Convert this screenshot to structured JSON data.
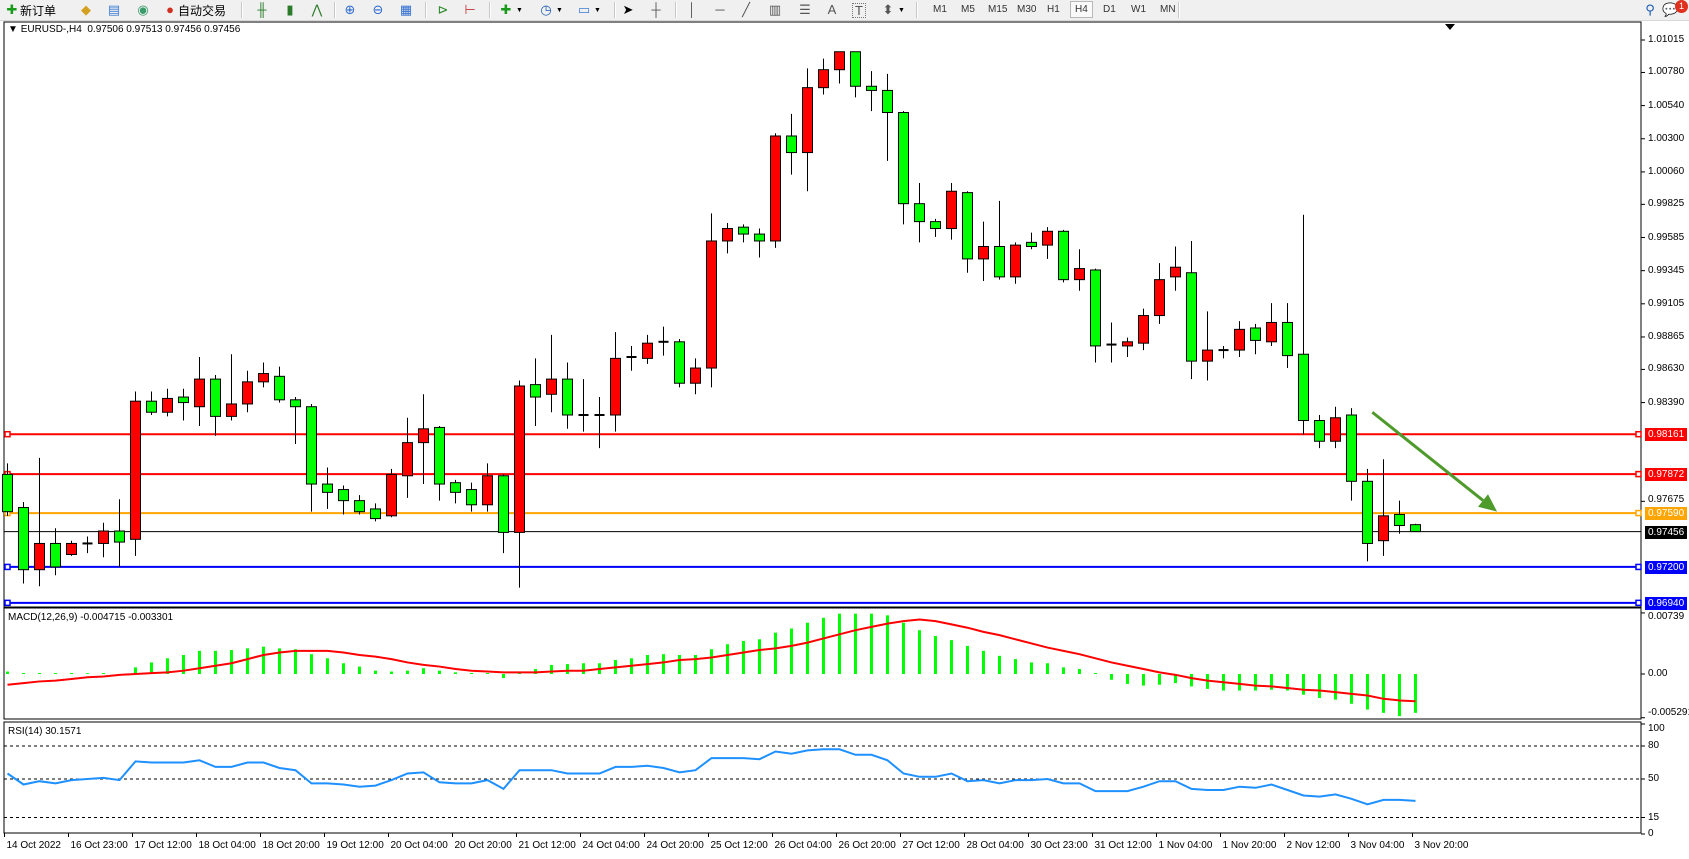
{
  "toolbar": {
    "new_order_label": "新订单",
    "autotrading_label": "自动交易",
    "timeframes": [
      "M1",
      "M5",
      "M15",
      "M30",
      "H1",
      "H4",
      "D1",
      "W1",
      "MN"
    ],
    "selected_timeframe": "H4",
    "text_tool": "A",
    "label_tool": "T",
    "notification_count": "1",
    "icons": [
      "new-order-icon",
      "gold-bars-icon",
      "market-watch-icon",
      "signals-icon",
      "autotrading-icon",
      "bar-chart-icon",
      "candlestick-icon",
      "line-chart-icon",
      "zoom-in-icon",
      "zoom-out-icon",
      "tile-windows-icon",
      "chart-shift-icon",
      "autoscroll-icon",
      "indicators-icon",
      "periods-icon",
      "templates-icon",
      "cursor-icon",
      "crosshair-icon",
      "vertical-line-icon",
      "horizontal-line-icon",
      "trendline-icon",
      "fibonacci-icon",
      "fibonacci-fan-icon",
      "text-icon",
      "label-icon",
      "arrows-icon",
      "search-icon",
      "notification-icon"
    ]
  },
  "chart_header": {
    "symbol": "EURUSD-,H4",
    "ohlc": "0.97506 0.97513 0.97456 0.97456"
  },
  "macd_header": "MACD(12,26,9) -0.004715 -0.003301",
  "rsi_header": "RSI(14) 30.1571",
  "colors": {
    "up_candle": "#ff0000",
    "down_candle": "#00ff00",
    "macd_hist": "#00ff00",
    "macd_signal": "#ff0000",
    "rsi": "#1e90ff",
    "arrow": "#4e9a2a"
  },
  "chart_data": [
    {
      "type": "candlestick",
      "symbol": "EURUSD-",
      "timeframe": "H4",
      "ylim": [
        0.9694,
        1.01015
      ],
      "y_ticks": [
        "1.01015",
        "1.00780",
        "1.00540",
        "1.00300",
        "1.00060",
        "0.99825",
        "0.99585",
        "0.99345",
        "0.99105",
        "0.98865",
        "0.98630",
        "0.98390",
        "0.97675"
      ],
      "x_tick_labels": [
        "14 Oct 2022",
        "16 Oct 23:00",
        "17 Oct 12:00",
        "18 Oct 04:00",
        "18 Oct 20:00",
        "19 Oct 12:00",
        "20 Oct 04:00",
        "20 Oct 20:00",
        "21 Oct 12:00",
        "24 Oct 04:00",
        "24 Oct 20:00",
        "25 Oct 12:00",
        "26 Oct 04:00",
        "26 Oct 20:00",
        "27 Oct 12:00",
        "28 Oct 04:00",
        "30 Oct 23:00",
        "31 Oct 12:00",
        "1 Nov 04:00",
        "1 Nov 20:00",
        "2 Nov 12:00",
        "3 Nov 04:00",
        "3 Nov 20:00"
      ],
      "x_tick_every_bars": 4,
      "ohlc": [
        [
          0.9787,
          0.9795,
          0.9757,
          0.976
        ],
        [
          0.9763,
          0.9767,
          0.9708,
          0.9718
        ],
        [
          0.9718,
          0.9799,
          0.9706,
          0.9737
        ],
        [
          0.9737,
          0.9748,
          0.9714,
          0.972
        ],
        [
          0.9729,
          0.9739,
          0.9728,
          0.9737
        ],
        [
          0.9737,
          0.9742,
          0.973,
          0.9737
        ],
        [
          0.9737,
          0.9752,
          0.9727,
          0.9746
        ],
        [
          0.9746,
          0.9769,
          0.972,
          0.9738
        ],
        [
          0.974,
          0.9847,
          0.9728,
          0.984
        ],
        [
          0.984,
          0.9847,
          0.983,
          0.9832
        ],
        [
          0.9832,
          0.9849,
          0.9829,
          0.9842
        ],
        [
          0.9843,
          0.9849,
          0.9826,
          0.9839
        ],
        [
          0.9836,
          0.9872,
          0.9822,
          0.9856
        ],
        [
          0.9856,
          0.9859,
          0.9815,
          0.9829
        ],
        [
          0.9829,
          0.9874,
          0.9826,
          0.9838
        ],
        [
          0.9838,
          0.9862,
          0.9832,
          0.9854
        ],
        [
          0.9854,
          0.9868,
          0.985,
          0.986
        ],
        [
          0.9858,
          0.9865,
          0.9839,
          0.9841
        ],
        [
          0.9841,
          0.9843,
          0.9809,
          0.9836
        ],
        [
          0.9836,
          0.9838,
          0.976,
          0.978
        ],
        [
          0.978,
          0.9792,
          0.9762,
          0.9774
        ],
        [
          0.9776,
          0.9779,
          0.9758,
          0.9768
        ],
        [
          0.9768,
          0.9772,
          0.9758,
          0.976
        ],
        [
          0.9762,
          0.9766,
          0.9753,
          0.9755
        ],
        [
          0.9757,
          0.9791,
          0.9756,
          0.9787
        ],
        [
          0.9786,
          0.9828,
          0.977,
          0.981
        ],
        [
          0.981,
          0.9845,
          0.978,
          0.982
        ],
        [
          0.9821,
          0.9822,
          0.9768,
          0.978
        ],
        [
          0.9781,
          0.9783,
          0.9766,
          0.9774
        ],
        [
          0.9776,
          0.9781,
          0.976,
          0.9765
        ],
        [
          0.9765,
          0.9795,
          0.976,
          0.9786
        ],
        [
          0.9786,
          0.9787,
          0.973,
          0.9745
        ],
        [
          0.9745,
          0.9855,
          0.9705,
          0.9851
        ],
        [
          0.9852,
          0.9871,
          0.9822,
          0.9843
        ],
        [
          0.9845,
          0.9888,
          0.9832,
          0.9856
        ],
        [
          0.9856,
          0.9868,
          0.982,
          0.983
        ],
        [
          0.983,
          0.9856,
          0.9818,
          0.983
        ],
        [
          0.983,
          0.9843,
          0.9806,
          0.983
        ],
        [
          0.983,
          0.989,
          0.9818,
          0.9871
        ],
        [
          0.9872,
          0.988,
          0.9862,
          0.9872
        ],
        [
          0.9871,
          0.9888,
          0.9867,
          0.9882
        ],
        [
          0.9883,
          0.9894,
          0.9873,
          0.9883
        ],
        [
          0.9883,
          0.9885,
          0.985,
          0.9853
        ],
        [
          0.9853,
          0.9871,
          0.9845,
          0.9864
        ],
        [
          0.9864,
          0.9976,
          0.985,
          0.9956
        ],
        [
          0.9956,
          0.9969,
          0.9947,
          0.9965
        ],
        [
          0.9966,
          0.9968,
          0.9955,
          0.9961
        ],
        [
          0.9961,
          0.9965,
          0.9944,
          0.9956
        ],
        [
          0.9956,
          1.0034,
          0.9951,
          1.0032
        ],
        [
          1.0032,
          1.0048,
          1.0004,
          1.002
        ],
        [
          1.002,
          1.0081,
          0.9992,
          1.0067
        ],
        [
          1.0067,
          1.0088,
          1.0062,
          1.008
        ],
        [
          1.008,
          1.0093,
          1.007,
          1.0093
        ],
        [
          1.0093,
          1.0093,
          1.006,
          1.0068
        ],
        [
          1.0068,
          1.0079,
          1.005,
          1.0065
        ],
        [
          1.0065,
          1.0077,
          1.0014,
          1.0049
        ],
        [
          1.0049,
          1.005,
          0.9968,
          0.9983
        ],
        [
          0.9983,
          0.9998,
          0.9955,
          0.997
        ],
        [
          0.997,
          0.9972,
          0.9959,
          0.9965
        ],
        [
          0.9965,
          0.9998,
          0.9957,
          0.9992
        ],
        [
          0.9991,
          0.9992,
          0.9933,
          0.9943
        ],
        [
          0.9943,
          0.997,
          0.9927,
          0.9952
        ],
        [
          0.9952,
          0.9985,
          0.9928,
          0.993
        ],
        [
          0.993,
          0.9955,
          0.9925,
          0.9953
        ],
        [
          0.9955,
          0.9962,
          0.995,
          0.9952
        ],
        [
          0.9953,
          0.9966,
          0.9943,
          0.9963
        ],
        [
          0.9963,
          0.9964,
          0.9926,
          0.9928
        ],
        [
          0.9928,
          0.995,
          0.992,
          0.9936
        ],
        [
          0.9935,
          0.9936,
          0.9868,
          0.988
        ],
        [
          0.9881,
          0.9897,
          0.9868,
          0.9881
        ],
        [
          0.988,
          0.9886,
          0.9872,
          0.9883
        ],
        [
          0.9882,
          0.9907,
          0.9877,
          0.9902
        ],
        [
          0.9902,
          0.994,
          0.9896,
          0.9928
        ],
        [
          0.993,
          0.9952,
          0.992,
          0.9937
        ],
        [
          0.9933,
          0.9956,
          0.9856,
          0.9869
        ],
        [
          0.9869,
          0.9905,
          0.9855,
          0.9877
        ],
        [
          0.9877,
          0.988,
          0.9871,
          0.9877
        ],
        [
          0.9877,
          0.9898,
          0.9872,
          0.9892
        ],
        [
          0.9893,
          0.9896,
          0.9874,
          0.9884
        ],
        [
          0.9883,
          0.9911,
          0.988,
          0.9897
        ],
        [
          0.9897,
          0.9911,
          0.9864,
          0.9873
        ],
        [
          0.9874,
          0.9975,
          0.9816,
          0.9826
        ],
        [
          0.9826,
          0.983,
          0.9806,
          0.9811
        ],
        [
          0.9811,
          0.9836,
          0.9806,
          0.9828
        ],
        [
          0.983,
          0.9835,
          0.9768,
          0.9782
        ],
        [
          0.9782,
          0.9791,
          0.9724,
          0.9737
        ],
        [
          0.9739,
          0.9798,
          0.9728,
          0.9757
        ],
        [
          0.9758,
          0.9768,
          0.9744,
          0.975
        ],
        [
          0.97506,
          0.97513,
          0.97456,
          0.97456
        ]
      ],
      "horizontal_levels": [
        {
          "price": "0.98161",
          "color": "#ff0000"
        },
        {
          "price": "0.97872",
          "color": "#ff0000"
        },
        {
          "price": "0.97590",
          "color": "#ffa500"
        },
        {
          "price": "0.97456",
          "color": "#000000",
          "kind": "bid"
        },
        {
          "price": "0.97200",
          "color": "#0000ff"
        },
        {
          "price": "0.96940",
          "color": "#0000ff"
        }
      ],
      "arrow": {
        "from": {
          "bar": 86.3,
          "price": 0.9832
        },
        "to": {
          "bar": 94.1,
          "price": 0.976
        },
        "color": "#4e9a2a"
      }
    },
    {
      "type": "bar+line",
      "indicator": "MACD(12,26,9)",
      "ylim": [
        -0.005291,
        0.00739
      ],
      "y_ticks": [
        "0.00739",
        "0.00",
        "-0.005291"
      ],
      "histogram": [
        0.0003,
        0,
        0,
        0,
        0,
        0.0001,
        0,
        -0.0002,
        0.0008,
        0.0014,
        0.0019,
        0.0023,
        0.0028,
        0.0028,
        0.0029,
        0.0031,
        0.0033,
        0.0031,
        0.003,
        0.0024,
        0.0019,
        0.0013,
        0.0009,
        0.0004,
        0.0003,
        0.0004,
        0.0007,
        0.0004,
        0.0002,
        0,
        0,
        -0.0005,
        0.0002,
        0.0006,
        0.0011,
        0.0012,
        0.0013,
        0.0013,
        0.0017,
        0.0019,
        0.0023,
        0.0024,
        0.0023,
        0.0023,
        0.003,
        0.0036,
        0.004,
        0.0042,
        0.005,
        0.0055,
        0.0062,
        0.0068,
        0.0073,
        0.0073,
        0.0073,
        0.0071,
        0.0062,
        0.0053,
        0.0046,
        0.0041,
        0.0034,
        0.0028,
        0.0022,
        0.0018,
        0.0014,
        0.0013,
        0.0008,
        0.0006,
        0,
        -0.0007,
        -0.0012,
        -0.0014,
        -0.0013,
        -0.0011,
        -0.0015,
        -0.0018,
        -0.002,
        -0.002,
        -0.002,
        -0.0019,
        -0.002,
        -0.0025,
        -0.0029,
        -0.0031,
        -0.0036,
        -0.0043,
        -0.0047,
        -0.0051,
        -0.0047
      ],
      "signal": [
        -0.0013,
        -0.0011,
        -0.0009,
        -0.0008,
        -0.0006,
        -0.0004,
        -0.0003,
        -0.0001,
        0,
        0.0001,
        0.0002,
        0.0004,
        0.0007,
        0.001,
        0.0013,
        0.0018,
        0.0023,
        0.0026,
        0.0028,
        0.0028,
        0.0028,
        0.0026,
        0.0023,
        0.0021,
        0.0018,
        0.0014,
        0.0011,
        0.0009,
        0.0006,
        0.0004,
        0.0003,
        0.0002,
        0.0002,
        0.0002,
        0.0003,
        0.0004,
        0.0004,
        0.0006,
        0.0008,
        0.001,
        0.0012,
        0.0014,
        0.0017,
        0.0018,
        0.002,
        0.0023,
        0.0026,
        0.0029,
        0.0031,
        0.0034,
        0.0038,
        0.0043,
        0.0048,
        0.0053,
        0.0057,
        0.0061,
        0.0064,
        0.0066,
        0.0064,
        0.006,
        0.0056,
        0.0051,
        0.0047,
        0.0042,
        0.0037,
        0.0032,
        0.0028,
        0.0024,
        0.0019,
        0.0014,
        0.001,
        0.0006,
        0.0002,
        -0.0001,
        -0.0005,
        -0.0008,
        -0.001,
        -0.0012,
        -0.0014,
        -0.0015,
        -0.0017,
        -0.0019,
        -0.002,
        -0.0022,
        -0.0024,
        -0.0026,
        -0.003,
        -0.0032,
        -0.0033
      ]
    },
    {
      "type": "line",
      "indicator": "RSI(14)",
      "ylim": [
        0,
        100
      ],
      "y_ticks": [
        "100",
        "80",
        "50",
        "15",
        "0"
      ],
      "levels": [
        80,
        50,
        15
      ],
      "values": [
        55,
        45,
        48,
        46,
        49,
        50,
        51,
        49,
        66,
        65,
        65,
        65,
        67,
        61,
        61,
        65,
        65,
        60,
        58,
        46,
        46,
        45,
        43,
        44,
        49,
        55,
        56,
        47,
        46,
        46,
        49,
        41,
        58,
        58,
        58,
        55,
        55,
        55,
        61,
        61,
        62,
        60,
        56,
        58,
        69,
        69,
        69,
        68,
        75,
        73,
        76,
        77,
        77,
        72,
        72,
        67,
        55,
        52,
        52,
        55,
        48,
        49,
        46,
        49,
        49,
        50,
        46,
        46,
        39,
        39,
        39,
        43,
        48,
        48,
        41,
        40,
        40,
        43,
        42,
        45,
        40,
        35,
        34,
        36,
        32,
        27,
        31,
        31,
        30.1571
      ]
    }
  ]
}
